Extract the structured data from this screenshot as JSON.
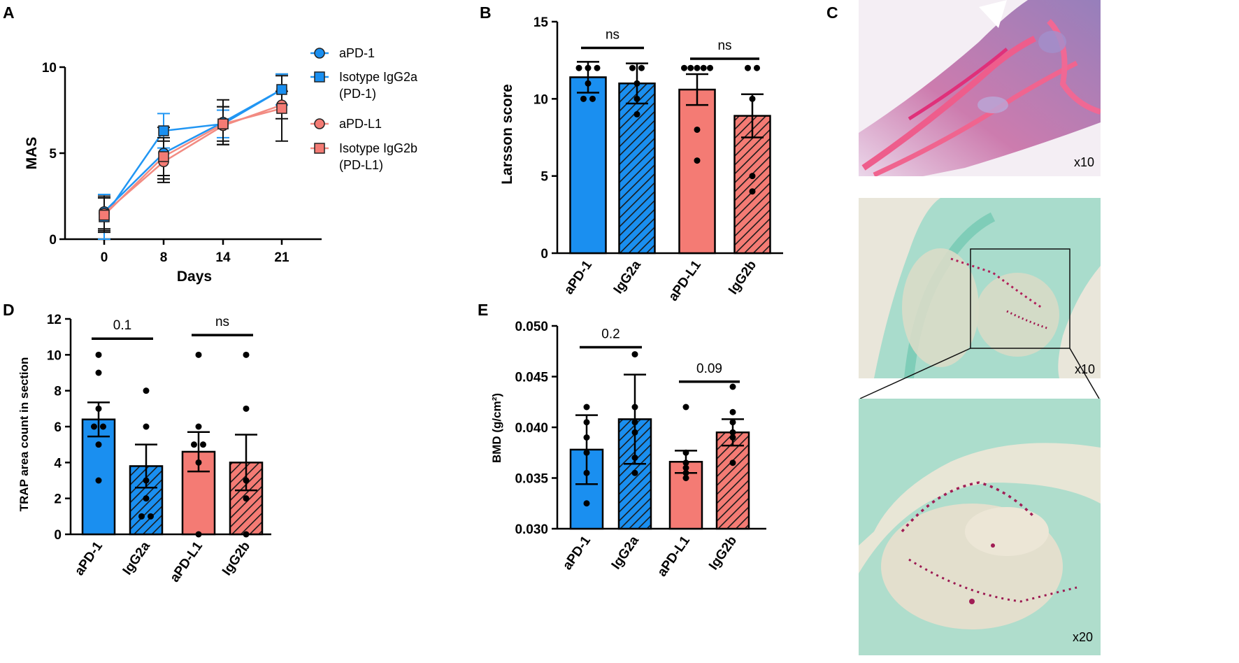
{
  "panels": {
    "A": "A",
    "B": "B",
    "C": "C",
    "D": "D",
    "E": "E"
  },
  "colors": {
    "blue": "#1a8ff0",
    "red": "#f47b74",
    "line_blue": "#2196f3",
    "line_red": "#f28b82",
    "black": "#000000"
  },
  "chart_data": [
    {
      "id": "A",
      "type": "line",
      "xlabel": "Days",
      "ylabel": "MAS",
      "x": [
        0,
        8,
        14,
        21
      ],
      "xticks": [
        "0",
        "8",
        "14",
        "21"
      ],
      "yticks": [
        "0",
        "5",
        "10"
      ],
      "ylim": [
        0,
        10
      ],
      "legend_position": "top-right",
      "series": [
        {
          "name": "aPD-1",
          "marker": "circle",
          "color": "#1a8ff0",
          "values": [
            1.6,
            5.0,
            6.8,
            8.7
          ],
          "err": [
            1.0,
            1.5,
            1.3,
            0.9
          ]
        },
        {
          "name": "Isotype IgG2a",
          "name2": "(PD-1)",
          "marker": "square",
          "color": "#1a8ff0",
          "values": [
            1.3,
            6.3,
            6.7,
            8.7
          ],
          "err": [
            1.3,
            1.0,
            0.8,
            0.9
          ]
        },
        {
          "name": "aPD-L1",
          "marker": "circle",
          "color": "#f47b74",
          "values": [
            1.5,
            4.5,
            6.6,
            7.8
          ],
          "err": [
            1.0,
            1.2,
            1.1,
            0.8
          ]
        },
        {
          "name": "Isotype IgG2b",
          "name2": "(PD-L1)",
          "marker": "square",
          "color": "#f47b74",
          "values": [
            1.4,
            4.8,
            6.7,
            7.6
          ],
          "err": [
            1.0,
            1.1,
            1.0,
            1.9
          ]
        }
      ]
    },
    {
      "id": "B",
      "type": "bar",
      "ylabel": "Larsson score",
      "categories": [
        "aPD-1",
        "IgG2a",
        "aPD-L1",
        "IgG2b"
      ],
      "values": [
        11.4,
        11.0,
        10.6,
        8.9
      ],
      "err": [
        1.0,
        1.3,
        1.0,
        1.4
      ],
      "hatched": [
        false,
        true,
        false,
        true
      ],
      "ylim": [
        0,
        15
      ],
      "yticks": [
        "0",
        "5",
        "10",
        "15"
      ],
      "points": [
        [
          12,
          12,
          12,
          11,
          10,
          10
        ],
        [
          12,
          12,
          11,
          10,
          9
        ],
        [
          12,
          12,
          12,
          12,
          12,
          8,
          6
        ],
        [
          12,
          12,
          10,
          5,
          4
        ]
      ],
      "comparisons": [
        {
          "a": 0,
          "b": 1,
          "label": "ns",
          "y": 13.3
        },
        {
          "a": 2,
          "b": 3,
          "label": "ns",
          "y": 12.6
        }
      ]
    },
    {
      "id": "D",
      "type": "bar",
      "ylabel": "TRAP area count in section",
      "categories": [
        "aPD-1",
        "IgG2a",
        "aPD-L1",
        "IgG2b"
      ],
      "values": [
        6.4,
        3.8,
        4.6,
        4.0
      ],
      "err": [
        0.95,
        1.2,
        1.1,
        1.55
      ],
      "hatched": [
        false,
        true,
        false,
        true
      ],
      "ylim": [
        0,
        12
      ],
      "yticks": [
        "0",
        "2",
        "4",
        "6",
        "8",
        "10",
        "12"
      ],
      "points": [
        [
          10,
          9,
          7,
          6,
          6,
          5,
          3
        ],
        [
          8,
          6,
          3,
          2,
          1,
          1
        ],
        [
          10,
          6,
          5,
          5,
          4,
          0
        ],
        [
          10,
          7,
          3,
          2,
          0
        ]
      ],
      "comparisons": [
        {
          "a": 0,
          "b": 1,
          "label": "0.1",
          "y": 10.9
        },
        {
          "a": 2,
          "b": 3,
          "label": "ns",
          "y": 11.1
        }
      ]
    },
    {
      "id": "E",
      "type": "bar",
      "ylabel": "BMD (g/cm²)",
      "categories": [
        "aPD-1",
        "IgG2a",
        "aPD-L1",
        "IgG2b"
      ],
      "values": [
        0.0378,
        0.0408,
        0.0366,
        0.0395
      ],
      "err": [
        0.0034,
        0.0044,
        0.0011,
        0.0013
      ],
      "hatched": [
        false,
        true,
        false,
        true
      ],
      "ylim": [
        0.03,
        0.05
      ],
      "yticks": [
        "0.030",
        "0.035",
        "0.040",
        "0.045",
        "0.050"
      ],
      "points": [
        [
          0.042,
          0.0405,
          0.039,
          0.0375,
          0.0355,
          0.0325
        ],
        [
          0.0472,
          0.042,
          0.0405,
          0.0395,
          0.037,
          0.0355
        ],
        [
          0.042,
          0.0375,
          0.0365,
          0.036,
          0.0355,
          0.035
        ],
        [
          0.044,
          0.0415,
          0.0405,
          0.0395,
          0.039,
          0.0365
        ]
      ],
      "comparisons": [
        {
          "a": 0,
          "b": 1,
          "label": "0.2",
          "y": 0.0479
        },
        {
          "a": 2,
          "b": 3,
          "label": "0.09",
          "y": 0.0445
        }
      ]
    }
  ],
  "micrographs": [
    {
      "magnification": "x10"
    },
    {
      "magnification": "x10"
    },
    {
      "magnification": "x20"
    }
  ]
}
